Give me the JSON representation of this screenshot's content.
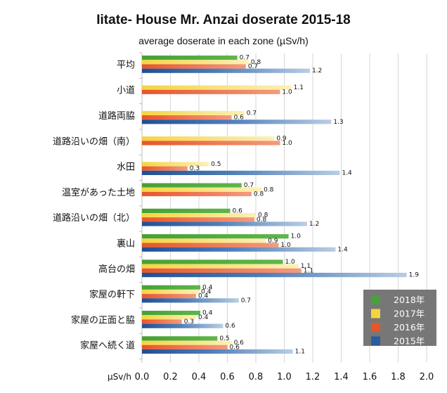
{
  "chart_data": {
    "type": "bar",
    "orientation": "horizontal",
    "title": "Iitate- House Mr. Anzai doserate 2015-18",
    "subtitle": "average doserate in each zone (µSv/h)",
    "xlabel": "µSv/h",
    "xlim": [
      0,
      2.0
    ],
    "x_ticks": [
      "0.0",
      "0.2",
      "0.4",
      "0.6",
      "0.8",
      "1.0",
      "1.2",
      "1.4",
      "1.6",
      "1.8",
      "2.0"
    ],
    "grid": true,
    "legend_position": "bottom-right",
    "categories": [
      "平均",
      "小道",
      "道路両脇",
      "道路沿いの畑（南）",
      "水田",
      "温室があった土地",
      "道路沿いの畑（北）",
      "裏山",
      "高台の畑",
      "家屋の軒下",
      "家屋の正面と脇",
      "家屋へ続く道"
    ],
    "series": [
      {
        "name": "2018年",
        "color": "#4aa03a",
        "values": [
          0.67,
          null,
          null,
          null,
          null,
          0.7,
          0.62,
          1.03,
          0.99,
          0.41,
          0.41,
          0.53
        ]
      },
      {
        "name": "2017年",
        "color": "#f5d442",
        "values": [
          0.75,
          1.05,
          0.72,
          0.93,
          0.47,
          0.84,
          0.8,
          0.87,
          1.1,
          0.4,
          0.38,
          0.63
        ]
      },
      {
        "name": "2016年",
        "color": "#e8552a",
        "values": [
          0.73,
          0.97,
          0.63,
          0.97,
          0.32,
          0.77,
          0.79,
          0.96,
          1.12,
          0.38,
          0.28,
          0.6
        ]
      },
      {
        "name": "2015年",
        "color": "#2a5da0",
        "values": [
          1.18,
          null,
          1.33,
          null,
          1.39,
          null,
          1.16,
          1.36,
          1.86,
          0.68,
          0.57,
          1.06
        ]
      }
    ],
    "data_labels": [
      [
        "0.7",
        "0.8",
        "0.7",
        "1.2"
      ],
      [
        null,
        "1.1",
        "1.0",
        null
      ],
      [
        null,
        "0.7",
        "0.6",
        "1.3"
      ],
      [
        null,
        "0.9",
        "1.0",
        null
      ],
      [
        null,
        "0.5",
        "0.3",
        "1.4"
      ],
      [
        "0.7",
        "0.8",
        "0.8",
        null
      ],
      [
        "0.6",
        "0.8",
        "0.8",
        "1.2"
      ],
      [
        "1.0",
        "0.9",
        "1.0",
        "1.4"
      ],
      [
        "1.0",
        "1.1",
        "1.1",
        "1.9"
      ],
      [
        "0.4",
        "0.4",
        "0.4",
        "0.7"
      ],
      [
        "0.4",
        "0.4",
        "0.3",
        "0.6"
      ],
      [
        "0.5",
        "0.6",
        "0.6",
        "1.1"
      ]
    ]
  }
}
